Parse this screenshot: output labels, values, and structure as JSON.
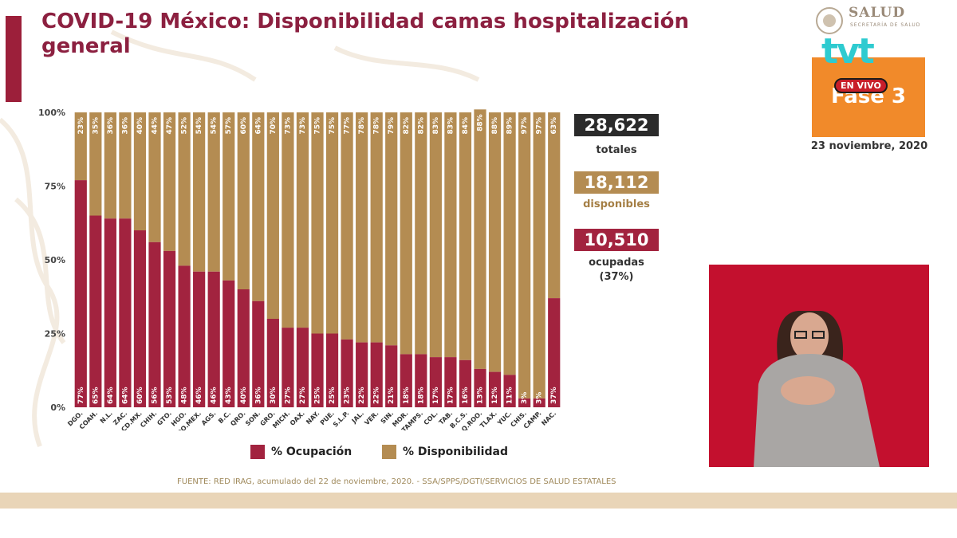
{
  "header": {
    "title": "COVID-19 México: Disponibilidad camas hospitalización general"
  },
  "colors": {
    "title": "#8c2040",
    "ocupacion": "#a2233f",
    "disponibilidad": "#b48c52",
    "total_box": "#2b2b2b",
    "disponibles_box": "#b48c52",
    "ocupadas_box": "#a2233f",
    "fase_box": "#f18a2a",
    "interpreter_bg": "#c3102e"
  },
  "stats": {
    "totales_value": "28,622",
    "totales_label": "totales",
    "disponibles_value": "18,112",
    "disponibles_label": "disponibles",
    "ocupadas_value": "10,510",
    "ocupadas_label": "ocupadas",
    "ocupadas_pct": "(37%)"
  },
  "date": "23 noviembre, 2020",
  "logos": {
    "salud_text": "SALUD",
    "salud_sub": "SECRETARÍA DE SALUD",
    "tvt": "tvt",
    "en_vivo": "EN VIVO",
    "fase": "Fase 3"
  },
  "source": "FUENTE: RED IRAG, acumulado del 22 de noviembre, 2020. - SSA/SPPS/DGTI/SERVICIOS DE SALUD ESTATALES",
  "legend": {
    "ocupacion": "% Ocupación",
    "disponibilidad": "% Disponibilidad"
  },
  "chart_data": {
    "type": "bar",
    "stacked": true,
    "categories": [
      "DGO.",
      "COAH.",
      "N.L.",
      "ZAC.",
      "CD.MX.",
      "CHIH.",
      "GTO.",
      "HGO.",
      "EDO.MEX.",
      "AGS.",
      "B.C.",
      "QRO.",
      "SON.",
      "GRO.",
      "MICH.",
      "OAX.",
      "NAY.",
      "PUE.",
      "S.L.P.",
      "JAL.",
      "VER.",
      "SIN.",
      "MOR.",
      "TAMPS.",
      "COL.",
      "TAB.",
      "B.C.S.",
      "Q.ROO.",
      "TLAX.",
      "YUC.",
      "CHIS.",
      "CAMP.",
      "NAC."
    ],
    "series": [
      {
        "name": "% Ocupación",
        "values": [
          77,
          65,
          64,
          64,
          60,
          56,
          53,
          48,
          46,
          46,
          43,
          40,
          36,
          30,
          27,
          27,
          25,
          25,
          23,
          22,
          22,
          21,
          18,
          18,
          17,
          17,
          16,
          13,
          12,
          11,
          3,
          3,
          37
        ]
      },
      {
        "name": "% Disponibilidad",
        "values": [
          23,
          35,
          36,
          36,
          40,
          44,
          47,
          52,
          54,
          54,
          57,
          60,
          64,
          70,
          73,
          73,
          75,
          75,
          77,
          78,
          78,
          79,
          82,
          82,
          83,
          83,
          84,
          88,
          88,
          89,
          97,
          97,
          63
        ]
      }
    ],
    "ylim": [
      0,
      100
    ],
    "yticks": [
      "0%",
      "25%",
      "50%",
      "75%",
      "100%"
    ],
    "legend_position": "bottom",
    "grid": false
  }
}
